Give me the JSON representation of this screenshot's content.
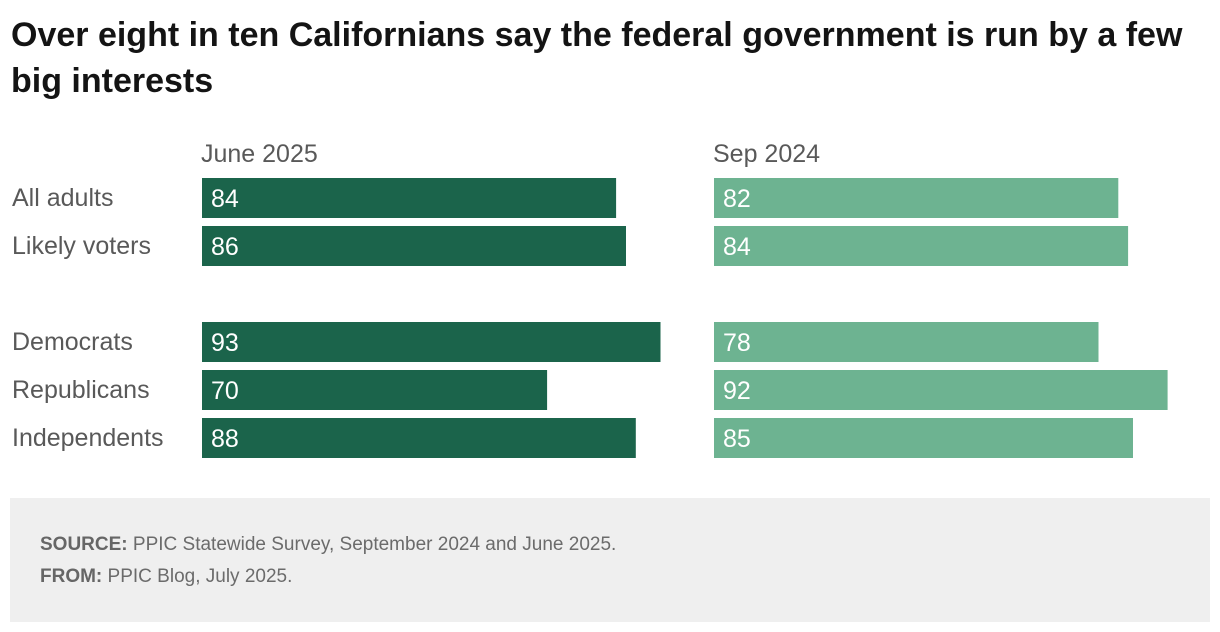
{
  "title": "Over eight in ten Californians say the federal government is run by a few big interests",
  "colors": {
    "june_2025": "#1b644b",
    "sep_2024": "#6db391",
    "bar_label": "#ffffff",
    "text": "#595959",
    "footer_bg": "#efefef"
  },
  "chart_data": {
    "type": "bar",
    "orientation": "horizontal",
    "panels": [
      "June 2025",
      "Sep 2024"
    ],
    "categories": [
      "All adults",
      "Likely voters",
      "Democrats",
      "Republicans",
      "Independents"
    ],
    "series": [
      {
        "name": "June 2025",
        "values": [
          84,
          86,
          93,
          70,
          88
        ]
      },
      {
        "name": "Sep 2024",
        "values": [
          82,
          84,
          78,
          92,
          85
        ]
      }
    ],
    "xlim": [
      0,
      100
    ],
    "grid": false,
    "legend": "none",
    "data_labels": "inside-left"
  },
  "footer": {
    "source_label": "SOURCE:",
    "source_text": "PPIC Statewide Survey, September 2024 and June 2025.",
    "from_label": "FROM:",
    "from_text": "PPIC Blog, July 2025."
  }
}
